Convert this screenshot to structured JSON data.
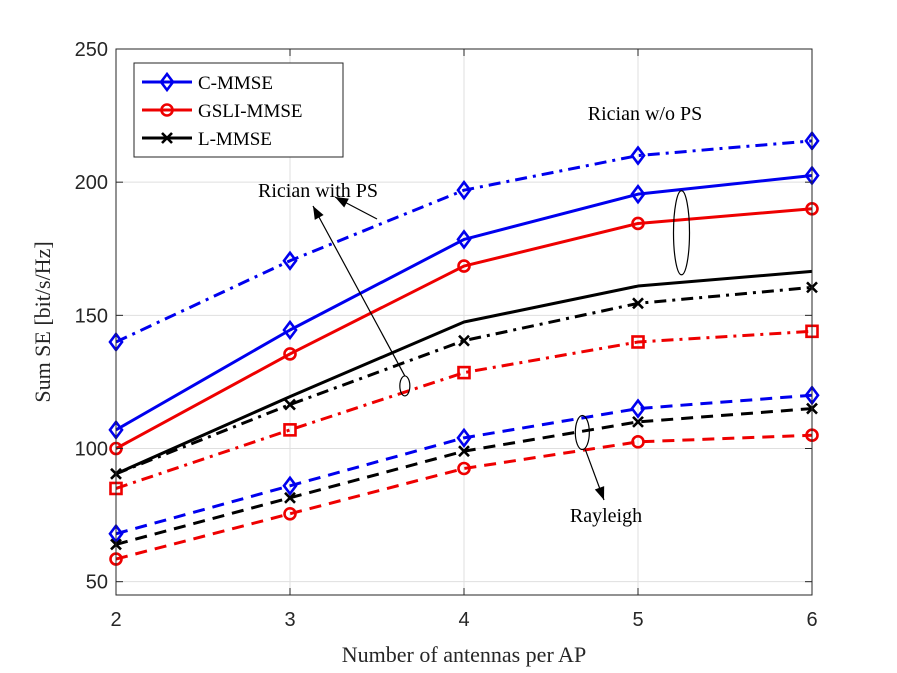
{
  "chart_data": {
    "type": "line",
    "title": "",
    "xlabel": "Number of antennas per AP",
    "ylabel": "Sum SE [bit/s/Hz]",
    "xlim": [
      2,
      6
    ],
    "ylim": [
      45,
      250
    ],
    "xticks": [
      2,
      3,
      4,
      5,
      6
    ],
    "yticks": [
      50,
      100,
      150,
      200,
      250
    ],
    "grid": true,
    "legend_position": "top-left",
    "x": [
      2,
      3,
      4,
      5,
      6
    ],
    "legend": [
      {
        "label": "C-MMSE",
        "color": "#0000ee",
        "marker": "diamond"
      },
      {
        "label": "GSLI-MMSE",
        "color": "#ee0000",
        "marker": "circle"
      },
      {
        "label": "L-MMSE",
        "color": "#000000",
        "marker": "x"
      }
    ],
    "series": [
      {
        "name": "C-MMSE (Rician w/o PS)",
        "color": "#0000ee",
        "style": "solid",
        "marker": "diamond",
        "values": [
          107,
          144.5,
          178.5,
          195.5,
          202.5
        ]
      },
      {
        "name": "GSLI-MMSE (Rician w/o PS)",
        "color": "#ee0000",
        "style": "solid",
        "marker": "circle",
        "values": [
          100,
          135.5,
          168.5,
          184.5,
          190
        ]
      },
      {
        "name": "L-MMSE (Rician w/o PS)",
        "color": "#000000",
        "style": "solid",
        "marker": "none",
        "values": [
          90.5,
          119.5,
          147.5,
          161,
          166.5
        ]
      },
      {
        "name": "C-MMSE (Rician with PS)",
        "color": "#0000ee",
        "style": "dashdot",
        "marker": "diamond",
        "values": [
          140,
          170.5,
          197,
          210,
          215.5
        ]
      },
      {
        "name": "L-MMSE (Rician with PS)",
        "color": "#000000",
        "style": "dashdot",
        "marker": "x",
        "values": [
          90.5,
          116.5,
          140.5,
          154.5,
          160.5
        ]
      },
      {
        "name": "GSLI-MMSE (Rician with PS)",
        "color": "#ee0000",
        "style": "dashdot",
        "marker": "square",
        "values": [
          85,
          107,
          128.5,
          140,
          144
        ]
      },
      {
        "name": "C-MMSE (Rayleigh)",
        "color": "#0000ee",
        "style": "dashed",
        "marker": "diamond",
        "values": [
          68,
          86,
          104,
          115,
          120
        ]
      },
      {
        "name": "L-MMSE (Rayleigh)",
        "color": "#000000",
        "style": "dashed",
        "marker": "x",
        "values": [
          64,
          81.5,
          99,
          110,
          115
        ]
      },
      {
        "name": "GSLI-MMSE (Rayleigh)",
        "color": "#ee0000",
        "style": "dashed",
        "marker": "circle",
        "values": [
          58.5,
          75.5,
          92.5,
          102.5,
          105
        ]
      }
    ],
    "annotations": [
      {
        "label": "Rician w/o PS"
      },
      {
        "label": "Rician with PS"
      },
      {
        "label": "Rayleigh"
      }
    ]
  }
}
